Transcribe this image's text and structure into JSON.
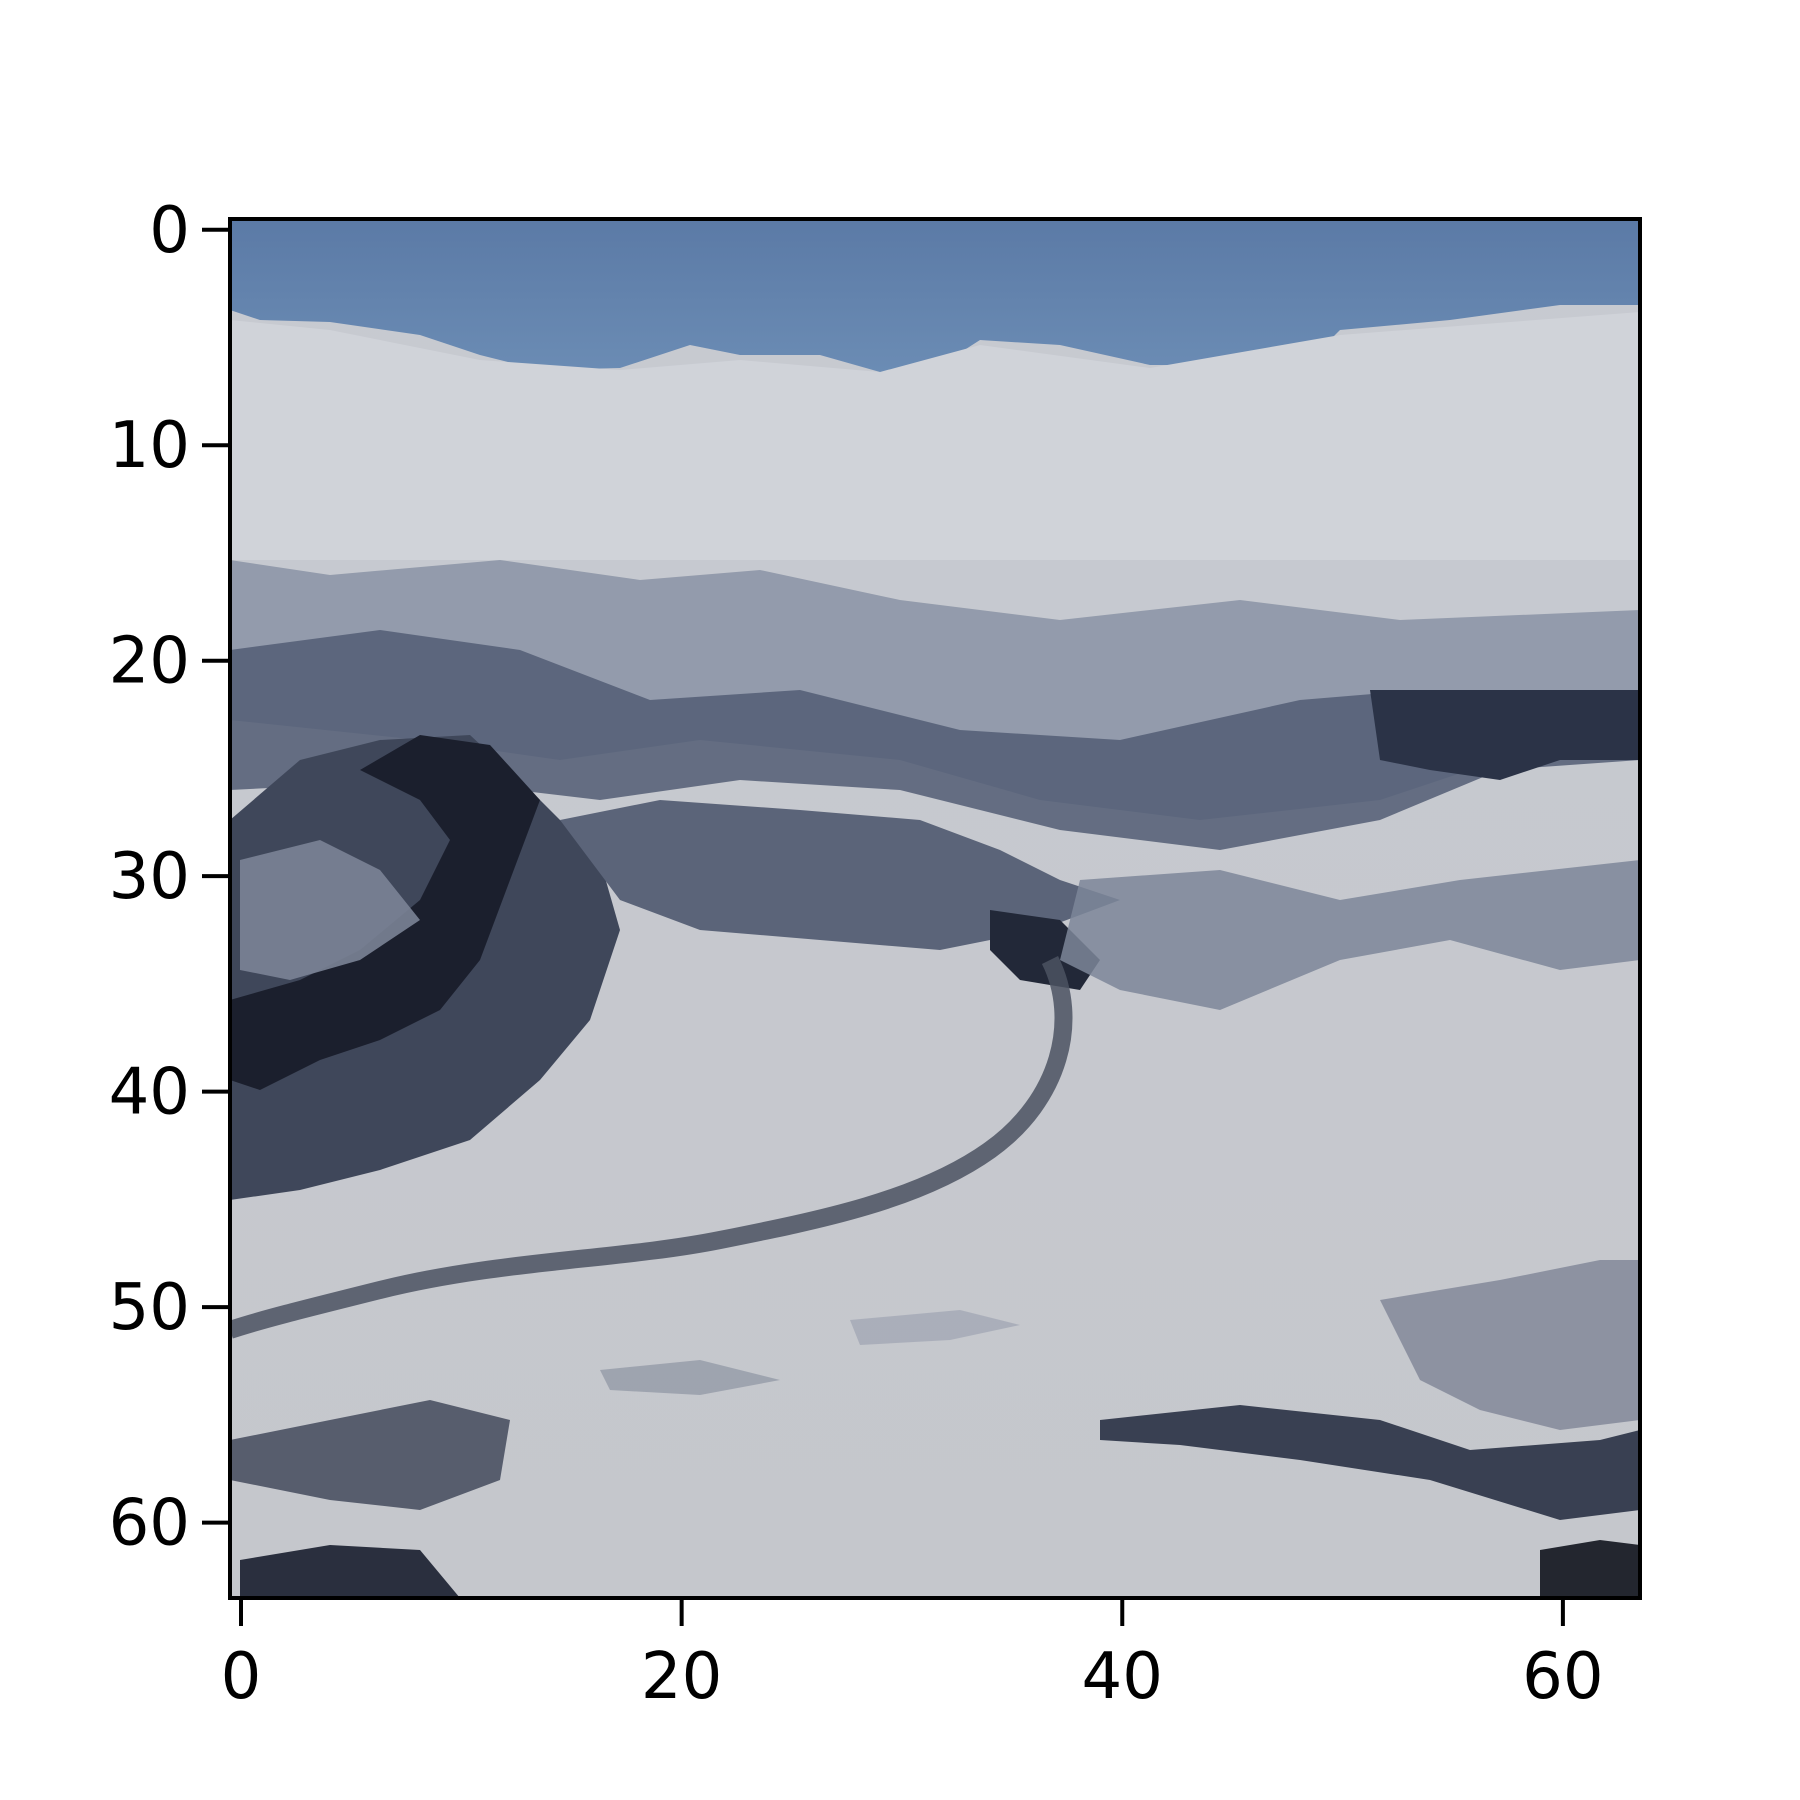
{
  "chart_data": {
    "type": "heatmap",
    "subtype": "image",
    "description_of_content": "64x64 pixel image of snowy mountains under a blue sky",
    "image_size": [
      64,
      64
    ],
    "xlim": [
      -0.5,
      63.5
    ],
    "ylim": [
      63.5,
      -0.5
    ],
    "x_ticks": [
      0,
      20,
      40,
      60
    ],
    "y_ticks": [
      0,
      10,
      20,
      30,
      40,
      50,
      60
    ],
    "x_tick_labels": [
      "0",
      "20",
      "40",
      "60"
    ],
    "y_tick_labels": [
      "0",
      "10",
      "20",
      "30",
      "40",
      "50",
      "60"
    ],
    "title": "",
    "xlabel": "",
    "ylabel": "",
    "grid": false,
    "colors": {
      "sky": "#5f7ea8",
      "snow": "#c9cbd0",
      "rock_dark": "#1e2230",
      "rock_mid": "#5a6478"
    }
  }
}
